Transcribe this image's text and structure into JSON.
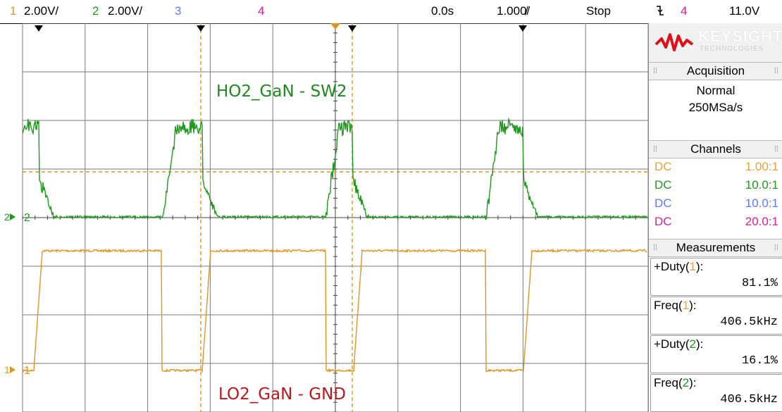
{
  "topbar": {
    "ch1_num": "1",
    "ch1_scale": "2.00V/",
    "ch2_num": "2",
    "ch2_scale": "2.00V/",
    "ch3_num": "3",
    "ch4_num": "4",
    "time_offset": "0.0s",
    "time_scale": "1.000̸/",
    "run_state": "Stop",
    "trigger_icon": "falling-edge-trigger-icon",
    "trigger_ch": "4",
    "trigger_level": "11.0V"
  },
  "scope": {
    "label_top": "HO2_GaN - SW2",
    "label_bottom": "LO2_GaN - GND",
    "ch2_marker": "2",
    "ch1_marker": "1"
  },
  "panel": {
    "brand": "KEYSIGHT",
    "brand_sub": "TECHNOLOGIES",
    "acq_title": "Acquisition",
    "acq_mode": "Normal",
    "acq_rate": "250MSa/s",
    "channels_title": "Channels",
    "channels": [
      {
        "coupling": "DC",
        "probe": "1.00:1",
        "color": "#f0a030"
      },
      {
        "coupling": "DC",
        "probe": "10.0:1",
        "color": "#1e9a1e"
      },
      {
        "coupling": "DC",
        "probe": "10.0:1",
        "color": "#5a7cff"
      },
      {
        "coupling": "DC",
        "probe": "20.0:1",
        "color": "#e01aa0"
      }
    ],
    "meas_title": "Measurements",
    "measurements": [
      {
        "prefix": "+Duty(",
        "ch": "1",
        "suffix": "):",
        "value": "81.1%",
        "ch_color": "#f0a030"
      },
      {
        "prefix": "Freq(",
        "ch": "1",
        "suffix": "):",
        "value": "406.5kHz",
        "ch_color": "#f0a030"
      },
      {
        "prefix": "+Duty(",
        "ch": "2",
        "suffix": "):",
        "value": "16.1%",
        "ch_color": "#1e9a1e"
      },
      {
        "prefix": "Freq(",
        "ch": "2",
        "suffix": "):",
        "value": "406.5kHz",
        "ch_color": "#1e9a1e"
      }
    ]
  },
  "colors": {
    "ch1": "#e39420",
    "ch2": "#1e9a1e",
    "ch3": "#5a7cff",
    "ch4": "#e01aa0",
    "label_top": "#1e8a1e",
    "label_bottom": "#c0161b",
    "brand_red": "#e0101a"
  }
}
